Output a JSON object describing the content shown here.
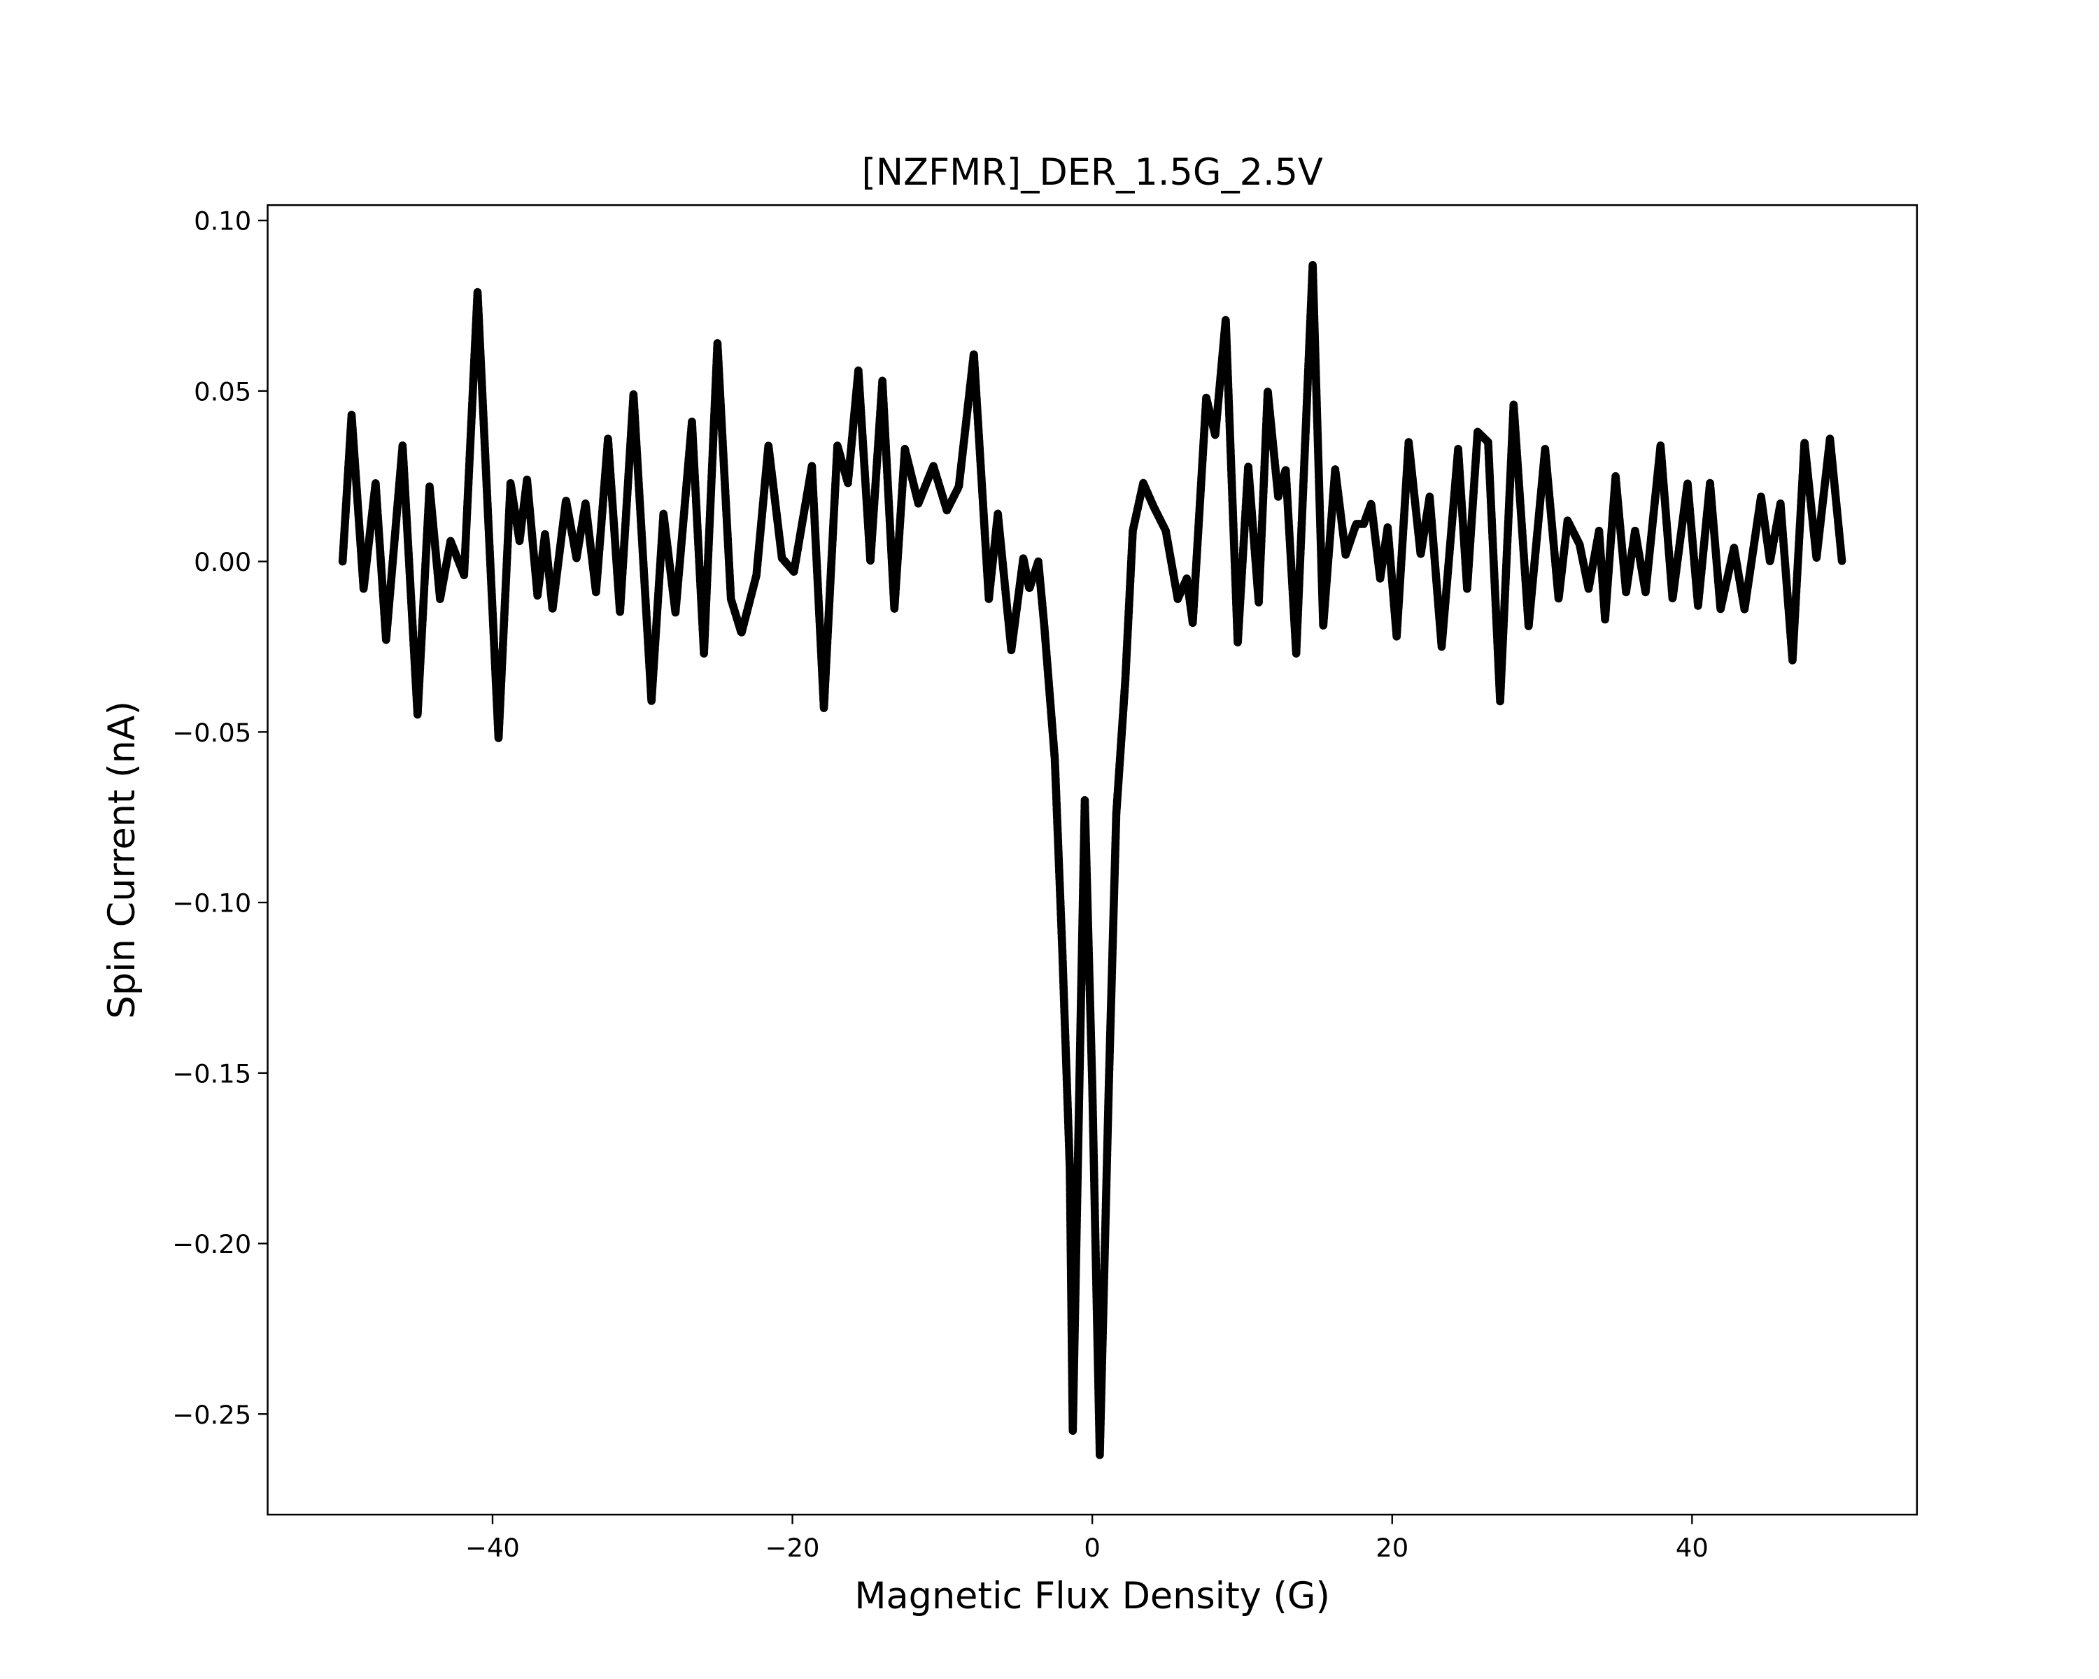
{
  "chart_data": {
    "type": "line",
    "title": "[NZFMR]_DER_1.5G_2.5V",
    "x_label": "Magnetic Flux Density (G)",
    "y_label": "Spin Current (nA)",
    "xlim": [
      -55,
      55
    ],
    "ylim": [
      -0.2795,
      0.1045
    ],
    "xticks": [
      {
        "value": -40,
        "label": "−40"
      },
      {
        "value": -20,
        "label": "−20"
      },
      {
        "value": 0,
        "label": "0"
      },
      {
        "value": 20,
        "label": "20"
      },
      {
        "value": 40,
        "label": "40"
      }
    ],
    "yticks": [
      {
        "value": 0.1,
        "label": "0.10"
      },
      {
        "value": 0.05,
        "label": "0.05"
      },
      {
        "value": 0.0,
        "label": "0.00"
      },
      {
        "value": -0.05,
        "label": "−0.05"
      },
      {
        "value": -0.1,
        "label": "−0.10"
      },
      {
        "value": -0.15,
        "label": "−0.15"
      },
      {
        "value": -0.2,
        "label": "−0.20"
      },
      {
        "value": -0.25,
        "label": "−0.25"
      }
    ],
    "grid": false,
    "color": "#000000",
    "x": [
      -50,
      -49.4,
      -48.6,
      -47.8,
      -47.1,
      -46.0,
      -45.0,
      -44.2,
      -43.5,
      -42.8,
      -41.9,
      -41.0,
      -39.6,
      -38.8,
      -38.2,
      -37.7,
      -37.0,
      -36.5,
      -36.0,
      -35.1,
      -34.4,
      -33.8,
      -33.1,
      -32.3,
      -31.5,
      -30.6,
      -29.4,
      -28.6,
      -27.8,
      -26.7,
      -25.9,
      -25.0,
      -24.1,
      -23.4,
      -22.4,
      -21.6,
      -20.7,
      -19.9,
      -18.7,
      -17.9,
      -17.0,
      -16.3,
      -15.6,
      -14.8,
      -14.0,
      -13.2,
      -12.5,
      -11.6,
      -10.6,
      -9.7,
      -8.9,
      -7.9,
      -6.9,
      -6.3,
      -5.4,
      -4.6,
      -4.2,
      -3.6,
      -3.2,
      -2.5,
      -2.0,
      -1.5,
      -1.3,
      -0.5,
      0.0,
      0.5,
      1.1,
      1.6,
      2.2,
      2.7,
      3.4,
      4.1,
      4.9,
      5.7,
      6.3,
      6.7,
      7.6,
      8.2,
      8.9,
      9.7,
      10.4,
      11.1,
      11.7,
      12.4,
      12.9,
      13.6,
      14.7,
      15.4,
      16.2,
      16.9,
      17.6,
      18.1,
      18.6,
      19.2,
      19.7,
      20.3,
      21.1,
      21.9,
      22.5,
      23.3,
      24.4,
      25.0,
      25.7,
      26.4,
      27.2,
      28.1,
      29.1,
      30.2,
      31.1,
      31.7,
      32.5,
      33.1,
      33.8,
      34.2,
      34.9,
      35.6,
      36.2,
      36.9,
      37.9,
      38.7,
      39.7,
      40.4,
      41.2,
      41.9,
      42.8,
      43.5,
      44.6,
      45.2,
      45.9,
      46.7,
      47.5,
      48.3,
      49.2,
      50
    ],
    "values": [
      0.0,
      0.043,
      -0.008,
      0.023,
      -0.023,
      0.034,
      -0.045,
      0.022,
      -0.011,
      0.006,
      -0.004,
      0.079,
      -0.052,
      0.023,
      0.006,
      0.024,
      -0.01,
      0.008,
      -0.014,
      0.018,
      0.001,
      0.017,
      -0.009,
      0.036,
      -0.015,
      0.049,
      -0.041,
      0.014,
      -0.015,
      0.041,
      -0.027,
      0.064,
      -0.011,
      -0.021,
      -0.004,
      0.034,
      0.001,
      -0.003,
      0.028,
      -0.043,
      0.034,
      0.023,
      0.056,
      0.0,
      0.053,
      -0.014,
      0.033,
      0.017,
      0.028,
      0.015,
      0.022,
      0.061,
      -0.011,
      0.014,
      -0.026,
      0.001,
      -0.008,
      0.0,
      -0.019,
      -0.058,
      -0.114,
      -0.178,
      -0.255,
      -0.07,
      -0.154,
      -0.262,
      -0.154,
      -0.074,
      -0.035,
      0.009,
      0.023,
      0.016,
      0.009,
      -0.011,
      -0.005,
      -0.018,
      0.048,
      0.037,
      0.071,
      -0.024,
      0.028,
      -0.012,
      0.05,
      0.019,
      0.027,
      -0.027,
      0.087,
      -0.019,
      0.027,
      0.002,
      0.011,
      0.011,
      0.017,
      -0.005,
      0.01,
      -0.022,
      0.035,
      0.002,
      0.019,
      -0.025,
      0.033,
      -0.008,
      0.038,
      0.035,
      -0.041,
      0.046,
      -0.019,
      0.033,
      -0.011,
      0.012,
      0.005,
      -0.008,
      0.009,
      -0.017,
      0.025,
      -0.009,
      0.009,
      -0.009,
      0.034,
      -0.011,
      0.023,
      -0.013,
      0.023,
      -0.014,
      0.004,
      -0.014,
      0.019,
      0.0,
      0.017,
      -0.029,
      0.035,
      0.001,
      0.036,
      0.0
    ]
  }
}
